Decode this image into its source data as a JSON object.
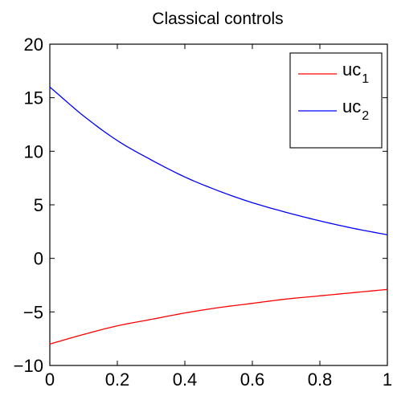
{
  "chart_data": {
    "type": "line",
    "title": "Classical controls",
    "xlabel": "",
    "ylabel": "",
    "xlim": [
      0,
      1
    ],
    "ylim": [
      -10,
      20
    ],
    "xticks": [
      0,
      0.2,
      0.4,
      0.6,
      0.8,
      1
    ],
    "xtick_labels": [
      "0",
      "0.2",
      "0.4",
      "0.6",
      "0.8",
      "1"
    ],
    "yticks": [
      -10,
      -5,
      0,
      5,
      10,
      15,
      20
    ],
    "ytick_labels": [
      "−10",
      "−5",
      "0",
      "5",
      "10",
      "15",
      "20"
    ],
    "grid": false,
    "legend_position": "top-right",
    "x": [
      0,
      0.1,
      0.2,
      0.3,
      0.4,
      0.5,
      0.6,
      0.7,
      0.8,
      0.9,
      1.0
    ],
    "series": [
      {
        "name": "uc",
        "subscript": "1",
        "color": "#ff0000",
        "values": [
          -8.0,
          -7.1,
          -6.3,
          -5.7,
          -5.1,
          -4.6,
          -4.2,
          -3.8,
          -3.5,
          -3.2,
          -2.9
        ]
      },
      {
        "name": "uc",
        "subscript": "2",
        "color": "#0000ff",
        "values": [
          16.0,
          13.3,
          11.0,
          9.2,
          7.6,
          6.3,
          5.2,
          4.3,
          3.5,
          2.8,
          2.2
        ]
      }
    ]
  }
}
